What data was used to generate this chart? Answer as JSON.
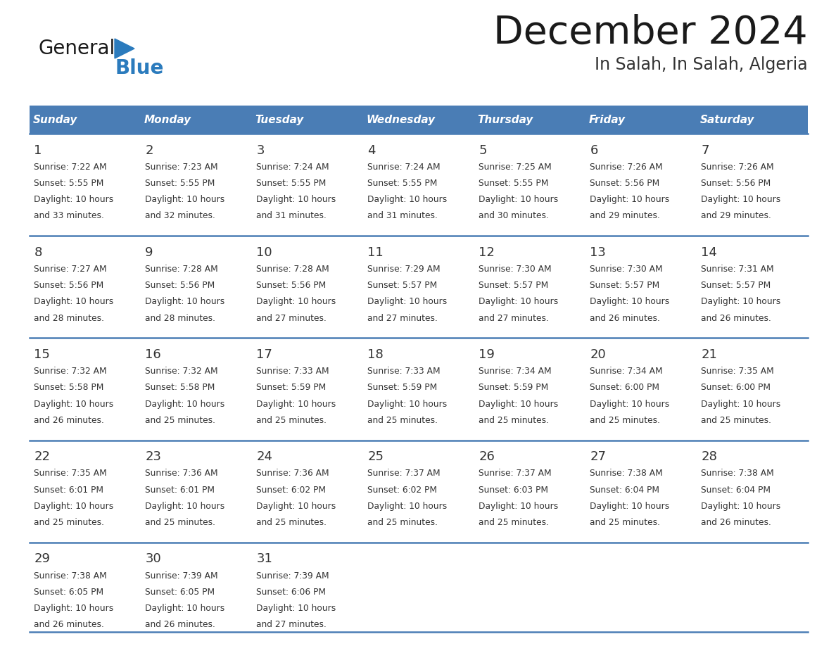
{
  "title": "December 2024",
  "subtitle": "In Salah, In Salah, Algeria",
  "header_color": "#4A7DB5",
  "header_text_color": "#FFFFFF",
  "background_color": "#FFFFFF",
  "cell_bg_color": "#FFFFFF",
  "separator_color": "#4A7DB5",
  "days_of_week": [
    "Sunday",
    "Monday",
    "Tuesday",
    "Wednesday",
    "Thursday",
    "Friday",
    "Saturday"
  ],
  "weeks": [
    [
      {
        "day": "1",
        "sunrise": "7:22 AM",
        "sunset": "5:55 PM",
        "daylight_mins": "33"
      },
      {
        "day": "2",
        "sunrise": "7:23 AM",
        "sunset": "5:55 PM",
        "daylight_mins": "32"
      },
      {
        "day": "3",
        "sunrise": "7:24 AM",
        "sunset": "5:55 PM",
        "daylight_mins": "31"
      },
      {
        "day": "4",
        "sunrise": "7:24 AM",
        "sunset": "5:55 PM",
        "daylight_mins": "31"
      },
      {
        "day": "5",
        "sunrise": "7:25 AM",
        "sunset": "5:55 PM",
        "daylight_mins": "30"
      },
      {
        "day": "6",
        "sunrise": "7:26 AM",
        "sunset": "5:56 PM",
        "daylight_mins": "29"
      },
      {
        "day": "7",
        "sunrise": "7:26 AM",
        "sunset": "5:56 PM",
        "daylight_mins": "29"
      }
    ],
    [
      {
        "day": "8",
        "sunrise": "7:27 AM",
        "sunset": "5:56 PM",
        "daylight_mins": "28"
      },
      {
        "day": "9",
        "sunrise": "7:28 AM",
        "sunset": "5:56 PM",
        "daylight_mins": "28"
      },
      {
        "day": "10",
        "sunrise": "7:28 AM",
        "sunset": "5:56 PM",
        "daylight_mins": "27"
      },
      {
        "day": "11",
        "sunrise": "7:29 AM",
        "sunset": "5:57 PM",
        "daylight_mins": "27"
      },
      {
        "day": "12",
        "sunrise": "7:30 AM",
        "sunset": "5:57 PM",
        "daylight_mins": "27"
      },
      {
        "day": "13",
        "sunrise": "7:30 AM",
        "sunset": "5:57 PM",
        "daylight_mins": "26"
      },
      {
        "day": "14",
        "sunrise": "7:31 AM",
        "sunset": "5:57 PM",
        "daylight_mins": "26"
      }
    ],
    [
      {
        "day": "15",
        "sunrise": "7:32 AM",
        "sunset": "5:58 PM",
        "daylight_mins": "26"
      },
      {
        "day": "16",
        "sunrise": "7:32 AM",
        "sunset": "5:58 PM",
        "daylight_mins": "25"
      },
      {
        "day": "17",
        "sunrise": "7:33 AM",
        "sunset": "5:59 PM",
        "daylight_mins": "25"
      },
      {
        "day": "18",
        "sunrise": "7:33 AM",
        "sunset": "5:59 PM",
        "daylight_mins": "25"
      },
      {
        "day": "19",
        "sunrise": "7:34 AM",
        "sunset": "5:59 PM",
        "daylight_mins": "25"
      },
      {
        "day": "20",
        "sunrise": "7:34 AM",
        "sunset": "6:00 PM",
        "daylight_mins": "25"
      },
      {
        "day": "21",
        "sunrise": "7:35 AM",
        "sunset": "6:00 PM",
        "daylight_mins": "25"
      }
    ],
    [
      {
        "day": "22",
        "sunrise": "7:35 AM",
        "sunset": "6:01 PM",
        "daylight_mins": "25"
      },
      {
        "day": "23",
        "sunrise": "7:36 AM",
        "sunset": "6:01 PM",
        "daylight_mins": "25"
      },
      {
        "day": "24",
        "sunrise": "7:36 AM",
        "sunset": "6:02 PM",
        "daylight_mins": "25"
      },
      {
        "day": "25",
        "sunrise": "7:37 AM",
        "sunset": "6:02 PM",
        "daylight_mins": "25"
      },
      {
        "day": "26",
        "sunrise": "7:37 AM",
        "sunset": "6:03 PM",
        "daylight_mins": "25"
      },
      {
        "day": "27",
        "sunrise": "7:38 AM",
        "sunset": "6:04 PM",
        "daylight_mins": "25"
      },
      {
        "day": "28",
        "sunrise": "7:38 AM",
        "sunset": "6:04 PM",
        "daylight_mins": "26"
      }
    ],
    [
      {
        "day": "29",
        "sunrise": "7:38 AM",
        "sunset": "6:05 PM",
        "daylight_mins": "26"
      },
      {
        "day": "30",
        "sunrise": "7:39 AM",
        "sunset": "6:05 PM",
        "daylight_mins": "26"
      },
      {
        "day": "31",
        "sunrise": "7:39 AM",
        "sunset": "6:06 PM",
        "daylight_mins": "27"
      },
      null,
      null,
      null,
      null
    ]
  ],
  "logo_general_color": "#1a1a1a",
  "logo_blue_color": "#2B7BBD",
  "logo_triangle_color": "#2B7BBD",
  "title_color": "#1a1a1a",
  "subtitle_color": "#333333",
  "day_num_color": "#333333",
  "cell_text_color": "#333333"
}
